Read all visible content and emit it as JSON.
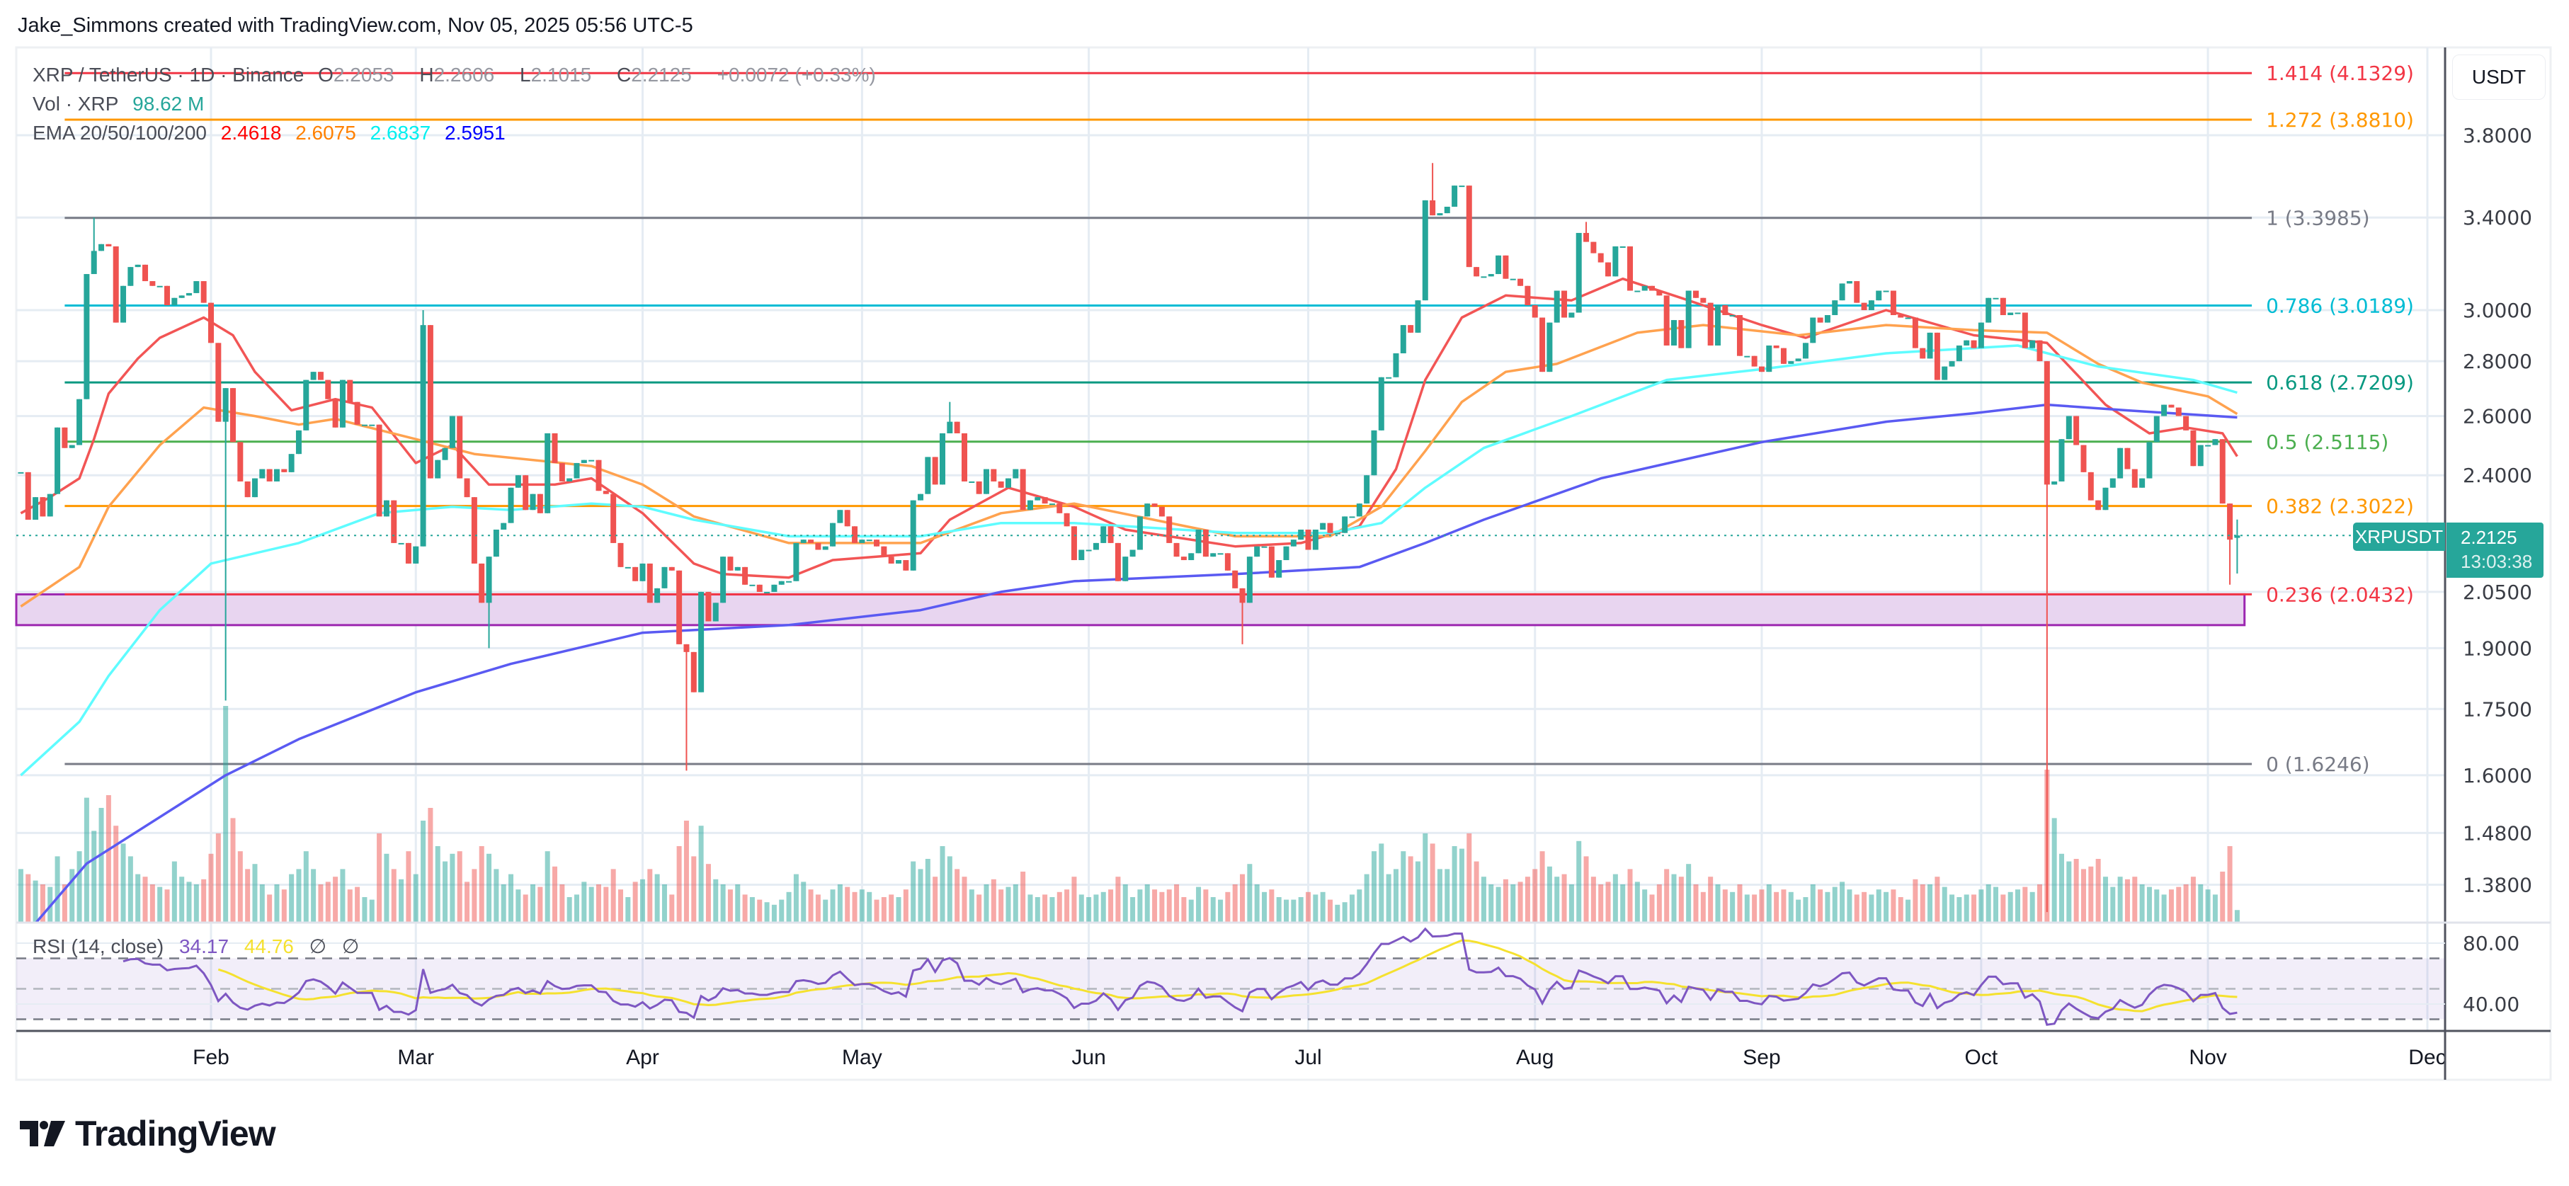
{
  "header": {
    "attribution": "Jake_Simmons created with TradingView.com, Nov 05, 2025 05:56 UTC-5"
  },
  "legend": {
    "symbol": "XRP / TetherUS · 1D · Binance",
    "o_label": "O",
    "o": "2.2053",
    "h_label": "H",
    "h": "2.2606",
    "l_label": "L",
    "l": "2.1015",
    "c_label": "C",
    "c": "2.2125",
    "change": "+0.0072 (+0.33%)",
    "vol_label": "Vol · XRP",
    "vol_value": "98.62 M",
    "ema_label": "EMA 20/50/100/200",
    "ema_values": [
      "2.4618",
      "2.6075",
      "2.6837",
      "2.5951"
    ]
  },
  "price_axis": {
    "currency": "USDT",
    "symbol_tag": "XRPUSDT",
    "last_price": "2.2125",
    "countdown": "13:03:38"
  },
  "rsi_legend": {
    "label": "RSI (14, close)",
    "rsi": "34.17",
    "sma": "44.76",
    "na1": "∅",
    "na2": "∅"
  },
  "logo": {
    "text": "TradingView"
  },
  "colors": {
    "up": "#26a69a",
    "down": "#ef5350",
    "ema20": "#f23645",
    "ema50": "#ff9800",
    "ema100": "#00e5ff",
    "ema200": "#3f3ff5",
    "rsi": "#7e57c2",
    "rsi_sma": "#f5e12f"
  },
  "chart_data": {
    "type": "candlestick",
    "symbol": "XRPUSDT",
    "interval": "1D",
    "y_scale": "log",
    "grid": true,
    "start_date": "2025-01-06",
    "closes": [
      2.41,
      2.26,
      2.33,
      2.27,
      2.34,
      2.56,
      2.49,
      2.5,
      2.66,
      3.15,
      3.25,
      3.28,
      3.27,
      2.95,
      3.1,
      3.18,
      3.19,
      3.12,
      3.1,
      3.1,
      3.02,
      3.05,
      3.06,
      3.07,
      3.12,
      3.03,
      2.87,
      2.58,
      2.7,
      2.51,
      2.38,
      2.33,
      2.39,
      2.42,
      2.38,
      2.42,
      2.41,
      2.47,
      2.55,
      2.73,
      2.76,
      2.73,
      2.66,
      2.56,
      2.73,
      2.65,
      2.57,
      2.57,
      2.57,
      2.27,
      2.32,
      2.19,
      2.19,
      2.13,
      2.18,
      2.94,
      2.39,
      2.45,
      2.49,
      2.6,
      2.39,
      2.33,
      2.13,
      2.02,
      2.15,
      2.23,
      2.25,
      2.36,
      2.4,
      2.29,
      2.34,
      2.28,
      2.54,
      2.44,
      2.38,
      2.39,
      2.44,
      2.45,
      2.45,
      2.35,
      2.34,
      2.19,
      2.12,
      2.12,
      2.08,
      2.13,
      2.02,
      2.06,
      2.12,
      2.11,
      1.91,
      1.89,
      1.79,
      2.05,
      1.97,
      2.02,
      2.15,
      2.11,
      2.12,
      2.07,
      2.07,
      2.05,
      2.05,
      2.07,
      2.08,
      2.08,
      2.19,
      2.2,
      2.19,
      2.17,
      2.18,
      2.25,
      2.29,
      2.24,
      2.19,
      2.2,
      2.2,
      2.18,
      2.15,
      2.13,
      2.14,
      2.11,
      2.32,
      2.34,
      2.46,
      2.37,
      2.54,
      2.58,
      2.54,
      2.38,
      2.38,
      2.34,
      2.42,
      2.38,
      2.36,
      2.39,
      2.42,
      2.29,
      2.32,
      2.33,
      2.31,
      2.31,
      2.28,
      2.24,
      2.14,
      2.17,
      2.17,
      2.19,
      2.24,
      2.19,
      2.08,
      2.15,
      2.17,
      2.27,
      2.31,
      2.3,
      2.27,
      2.19,
      2.15,
      2.14,
      2.16,
      2.23,
      2.15,
      2.16,
      2.16,
      2.11,
      2.06,
      2.02,
      2.15,
      2.18,
      2.18,
      2.09,
      2.14,
      2.18,
      2.2,
      2.23,
      2.17,
      2.23,
      2.25,
      2.22,
      2.22,
      2.27,
      2.27,
      2.31,
      2.4,
      2.55,
      2.74,
      2.74,
      2.83,
      2.94,
      2.91,
      3.04,
      3.48,
      3.41,
      3.42,
      3.45,
      3.55,
      3.55,
      3.18,
      3.14,
      3.14,
      3.15,
      3.23,
      3.13,
      3.13,
      3.1,
      3.02,
      2.97,
      2.76,
      2.95,
      3.08,
      2.97,
      2.99,
      3.33,
      3.29,
      3.24,
      3.2,
      3.14,
      3.27,
      3.27,
      3.08,
      3.08,
      3.1,
      3.08,
      3.06,
      2.86,
      2.96,
      2.85,
      3.08,
      3.05,
      3.03,
      2.86,
      3.02,
      2.98,
      2.98,
      2.82,
      2.82,
      2.78,
      2.76,
      2.86,
      2.85,
      2.79,
      2.8,
      2.81,
      2.87,
      2.97,
      2.95,
      2.98,
      3.04,
      3.11,
      3.12,
      3.03,
      3.0,
      3.04,
      3.08,
      3.08,
      2.98,
      2.97,
      2.97,
      2.85,
      2.81,
      2.91,
      2.73,
      2.78,
      2.8,
      2.86,
      2.88,
      2.85,
      2.95,
      3.05,
      3.05,
      2.98,
      2.99,
      2.99,
      2.85,
      2.88,
      2.8,
      2.37,
      2.38,
      2.52,
      2.6,
      2.5,
      2.41,
      2.32,
      2.29,
      2.36,
      2.39,
      2.49,
      2.42,
      2.36,
      2.39,
      2.51,
      2.6,
      2.64,
      2.63,
      2.6,
      2.55,
      2.43,
      2.5,
      2.5,
      2.52,
      2.31,
      2.2,
      2.2125
    ],
    "last_open": 2.2053,
    "wick_highs": {
      "2025-01-16": 3.4,
      "2025-03-02": 3.0,
      "2025-05-13": 2.65,
      "2025-07-18": 3.66,
      "2025-08-08": 3.38,
      "2025-11-05": 2.2606
    },
    "wick_lows": {
      "2025-02-03": 1.77,
      "2025-03-11": 1.9,
      "2025-04-07": 1.61,
      "2025-06-22": 1.91,
      "2025-10-10": 1.33,
      "2025-11-04": 2.07,
      "2025-11-05": 2.1015
    },
    "volume_millions": [
      420,
      380,
      330,
      300,
      280,
      520,
      300,
      420,
      560,
      980,
      720,
      900,
      1000,
      760,
      620,
      520,
      380,
      360,
      300,
      280,
      260,
      480,
      360,
      320,
      300,
      340,
      540,
      700,
      1700,
      820,
      560,
      420,
      460,
      300,
      220,
      300,
      260,
      380,
      420,
      560,
      420,
      300,
      320,
      360,
      420,
      260,
      280,
      200,
      180,
      700,
      540,
      420,
      340,
      560,
      380,
      800,
      900,
      600,
      480,
      540,
      560,
      320,
      420,
      600,
      540,
      420,
      300,
      380,
      260,
      220,
      300,
      280,
      560,
      440,
      300,
      200,
      220,
      320,
      280,
      300,
      280,
      420,
      260,
      200,
      320,
      340,
      420,
      380,
      300,
      220,
      600,
      800,
      520,
      760,
      460,
      340,
      300,
      260,
      300,
      220,
      200,
      180,
      160,
      140,
      180,
      240,
      380,
      320,
      260,
      220,
      180,
      260,
      300,
      280,
      240,
      260,
      240,
      180,
      200,
      220,
      200,
      260,
      480,
      420,
      500,
      360,
      600,
      520,
      420,
      360,
      260,
      220,
      300,
      340,
      260,
      280,
      300,
      400,
      220,
      200,
      220,
      200,
      240,
      260,
      360,
      220,
      200,
      220,
      240,
      260,
      360,
      300,
      200,
      260,
      300,
      260,
      240,
      260,
      300,
      200,
      180,
      280,
      260,
      200,
      180,
      240,
      300,
      380,
      460,
      300,
      240,
      260,
      200,
      180,
      180,
      200,
      240,
      220,
      240,
      180,
      140,
      160,
      220,
      260,
      380,
      560,
      620,
      380,
      420,
      560,
      520,
      480,
      700,
      620,
      420,
      420,
      600,
      580,
      700,
      480,
      360,
      300,
      280,
      340,
      300,
      320,
      360,
      420,
      560,
      440,
      360,
      380,
      300,
      640,
      520,
      360,
      300,
      320,
      380,
      300,
      420,
      320,
      260,
      220,
      300,
      420,
      380,
      360,
      460,
      300,
      240,
      360,
      300,
      260,
      240,
      300,
      220,
      220,
      260,
      300,
      240,
      260,
      240,
      180,
      200,
      300,
      260,
      240,
      280,
      320,
      260,
      220,
      240,
      220,
      260,
      240,
      260,
      200,
      180,
      340,
      300,
      300,
      360,
      280,
      220,
      200,
      220,
      220,
      260,
      300,
      280,
      220,
      240,
      260,
      280,
      240,
      300,
      1200,
      820,
      540,
      480,
      500,
      420,
      440,
      500,
      360,
      280,
      360,
      340,
      360,
      300,
      280,
      260,
      220,
      260,
      280,
      300,
      360,
      300,
      260,
      220,
      400,
      600,
      98.62
    ],
    "ema": {
      "ema20": [
        [
          "2025-01-06",
          2.28
        ],
        [
          "2025-01-10",
          2.33
        ],
        [
          "2025-01-14",
          2.39
        ],
        [
          "2025-01-16",
          2.52
        ],
        [
          "2025-01-18",
          2.68
        ],
        [
          "2025-01-22",
          2.81
        ],
        [
          "2025-01-25",
          2.89
        ],
        [
          "2025-01-31",
          2.97
        ],
        [
          "2025-02-04",
          2.9
        ],
        [
          "2025-02-07",
          2.76
        ],
        [
          "2025-02-12",
          2.62
        ],
        [
          "2025-02-18",
          2.66
        ],
        [
          "2025-02-23",
          2.63
        ],
        [
          "2025-03-01",
          2.44
        ],
        [
          "2025-03-06",
          2.5
        ],
        [
          "2025-03-11",
          2.37
        ],
        [
          "2025-03-20",
          2.37
        ],
        [
          "2025-03-25",
          2.39
        ],
        [
          "2025-04-01",
          2.28
        ],
        [
          "2025-04-08",
          2.13
        ],
        [
          "2025-04-12",
          2.1
        ],
        [
          "2025-04-21",
          2.09
        ],
        [
          "2025-04-27",
          2.14
        ],
        [
          "2025-05-09",
          2.16
        ],
        [
          "2025-05-13",
          2.26
        ],
        [
          "2025-05-21",
          2.36
        ],
        [
          "2025-05-30",
          2.3
        ],
        [
          "2025-06-06",
          2.23
        ],
        [
          "2025-06-21",
          2.18
        ],
        [
          "2025-06-30",
          2.19
        ],
        [
          "2025-07-08",
          2.24
        ],
        [
          "2025-07-13",
          2.42
        ],
        [
          "2025-07-17",
          2.73
        ],
        [
          "2025-07-22",
          2.97
        ],
        [
          "2025-07-28",
          3.06
        ],
        [
          "2025-08-06",
          3.04
        ],
        [
          "2025-08-13",
          3.13
        ],
        [
          "2025-08-21",
          3.05
        ],
        [
          "2025-09-01",
          2.94
        ],
        [
          "2025-09-07",
          2.89
        ],
        [
          "2025-09-18",
          3.0
        ],
        [
          "2025-09-30",
          2.9
        ],
        [
          "2025-10-10",
          2.87
        ],
        [
          "2025-10-18",
          2.64
        ],
        [
          "2025-10-24",
          2.54
        ],
        [
          "2025-10-29",
          2.56
        ],
        [
          "2025-11-03",
          2.54
        ],
        [
          "2025-11-05",
          2.4618
        ]
      ],
      "ema50": [
        [
          "2025-01-06",
          2.01
        ],
        [
          "2025-01-14",
          2.12
        ],
        [
          "2025-01-18",
          2.3
        ],
        [
          "2025-01-25",
          2.5
        ],
        [
          "2025-01-31",
          2.63
        ],
        [
          "2025-02-07",
          2.6
        ],
        [
          "2025-02-13",
          2.57
        ],
        [
          "2025-02-18",
          2.59
        ],
        [
          "2025-03-01",
          2.52
        ],
        [
          "2025-03-09",
          2.47
        ],
        [
          "2025-03-25",
          2.43
        ],
        [
          "2025-04-01",
          2.37
        ],
        [
          "2025-04-08",
          2.27
        ],
        [
          "2025-04-21",
          2.19
        ],
        [
          "2025-05-09",
          2.19
        ],
        [
          "2025-05-20",
          2.28
        ],
        [
          "2025-05-30",
          2.31
        ],
        [
          "2025-06-21",
          2.21
        ],
        [
          "2025-07-04",
          2.21
        ],
        [
          "2025-07-11",
          2.3
        ],
        [
          "2025-07-17",
          2.48
        ],
        [
          "2025-07-22",
          2.65
        ],
        [
          "2025-07-28",
          2.76
        ],
        [
          "2025-08-04",
          2.79
        ],
        [
          "2025-08-15",
          2.91
        ],
        [
          "2025-08-24",
          2.94
        ],
        [
          "2025-09-06",
          2.9
        ],
        [
          "2025-09-18",
          2.94
        ],
        [
          "2025-09-30",
          2.92
        ],
        [
          "2025-10-10",
          2.91
        ],
        [
          "2025-10-17",
          2.79
        ],
        [
          "2025-10-23",
          2.72
        ],
        [
          "2025-11-01",
          2.67
        ],
        [
          "2025-11-05",
          2.6075
        ]
      ],
      "ema100": [
        [
          "2025-01-06",
          1.6
        ],
        [
          "2025-01-14",
          1.72
        ],
        [
          "2025-01-18",
          1.83
        ],
        [
          "2025-01-25",
          2.0
        ],
        [
          "2025-02-01",
          2.13
        ],
        [
          "2025-02-13",
          2.19
        ],
        [
          "2025-02-24",
          2.28
        ],
        [
          "2025-03-06",
          2.3
        ],
        [
          "2025-03-14",
          2.29
        ],
        [
          "2025-03-25",
          2.31
        ],
        [
          "2025-04-01",
          2.3
        ],
        [
          "2025-04-08",
          2.26
        ],
        [
          "2025-04-21",
          2.21
        ],
        [
          "2025-05-09",
          2.21
        ],
        [
          "2025-05-20",
          2.25
        ],
        [
          "2025-05-30",
          2.25
        ],
        [
          "2025-06-21",
          2.22
        ],
        [
          "2025-07-04",
          2.22
        ],
        [
          "2025-07-11",
          2.25
        ],
        [
          "2025-07-17",
          2.36
        ],
        [
          "2025-07-25",
          2.49
        ],
        [
          "2025-08-06",
          2.6
        ],
        [
          "2025-08-19",
          2.73
        ],
        [
          "2025-09-01",
          2.77
        ],
        [
          "2025-09-18",
          2.83
        ],
        [
          "2025-10-06",
          2.86
        ],
        [
          "2025-10-17",
          2.78
        ],
        [
          "2025-10-30",
          2.73
        ],
        [
          "2025-11-05",
          2.6837
        ]
      ],
      "ema200": [
        [
          "2025-01-06",
          1.28
        ],
        [
          "2025-01-15",
          1.42
        ],
        [
          "2025-02-03",
          1.6
        ],
        [
          "2025-02-13",
          1.68
        ],
        [
          "2025-03-01",
          1.79
        ],
        [
          "2025-03-14",
          1.86
        ],
        [
          "2025-04-01",
          1.94
        ],
        [
          "2025-04-21",
          1.96
        ],
        [
          "2025-05-09",
          2.0
        ],
        [
          "2025-05-20",
          2.05
        ],
        [
          "2025-05-30",
          2.08
        ],
        [
          "2025-06-21",
          2.1
        ],
        [
          "2025-07-08",
          2.12
        ],
        [
          "2025-07-17",
          2.19
        ],
        [
          "2025-07-25",
          2.26
        ],
        [
          "2025-08-10",
          2.39
        ],
        [
          "2025-09-01",
          2.51
        ],
        [
          "2025-09-18",
          2.58
        ],
        [
          "2025-09-30",
          2.61
        ],
        [
          "2025-10-10",
          2.64
        ],
        [
          "2025-10-21",
          2.62
        ],
        [
          "2025-11-05",
          2.5951
        ]
      ]
    },
    "fib": {
      "start": "2025-01-12",
      "end": "2025-11-07",
      "levels": [
        {
          "ratio": "1.414",
          "price": "4.1329",
          "color": "#f23645"
        },
        {
          "ratio": "1.272",
          "price": "3.8810",
          "color": "#ff9800"
        },
        {
          "ratio": "1",
          "price": "3.3985",
          "color": "#787b86"
        },
        {
          "ratio": "0.786",
          "price": "3.0189",
          "color": "#00bcd4"
        },
        {
          "ratio": "0.618",
          "price": "2.7209",
          "color": "#089981"
        },
        {
          "ratio": "0.5",
          "price": "2.5115",
          "color": "#4caf50"
        },
        {
          "ratio": "0.382",
          "price": "2.3022",
          "color": "#ff9800"
        },
        {
          "ratio": "0.236",
          "price": "2.0432",
          "color": "#f23645"
        },
        {
          "ratio": "0",
          "price": "1.6246",
          "color": "#787b86"
        }
      ]
    },
    "support_zone": {
      "top": 2.0432,
      "bottom": 1.96,
      "end": "2025-11-06",
      "fill": "#e8d5f0",
      "border": "#9c27b0"
    },
    "y_ticks": [
      "3.8000",
      "3.4000",
      "3.0000",
      "2.8000",
      "2.6000",
      "2.4000",
      "2.0500",
      "1.9000",
      "1.7500",
      "1.6000",
      "1.4800",
      "1.3800"
    ],
    "x_ticks": [
      [
        "2025-02-01",
        "Feb"
      ],
      [
        "2025-03-01",
        "Mar"
      ],
      [
        "2025-04-01",
        "Apr"
      ],
      [
        "2025-05-01",
        "May"
      ],
      [
        "2025-06-01",
        "Jun"
      ],
      [
        "2025-07-01",
        "Jul"
      ],
      [
        "2025-08-01",
        "Aug"
      ],
      [
        "2025-09-01",
        "Sep"
      ],
      [
        "2025-10-01",
        "Oct"
      ],
      [
        "2025-11-01",
        "Nov"
      ],
      [
        "2025-12-01",
        "Dec"
      ]
    ],
    "rsi": {
      "period": 14,
      "sma_period": 14,
      "bands": [
        70,
        50,
        30
      ],
      "ticks": [
        "80.00",
        "40.00"
      ]
    }
  }
}
